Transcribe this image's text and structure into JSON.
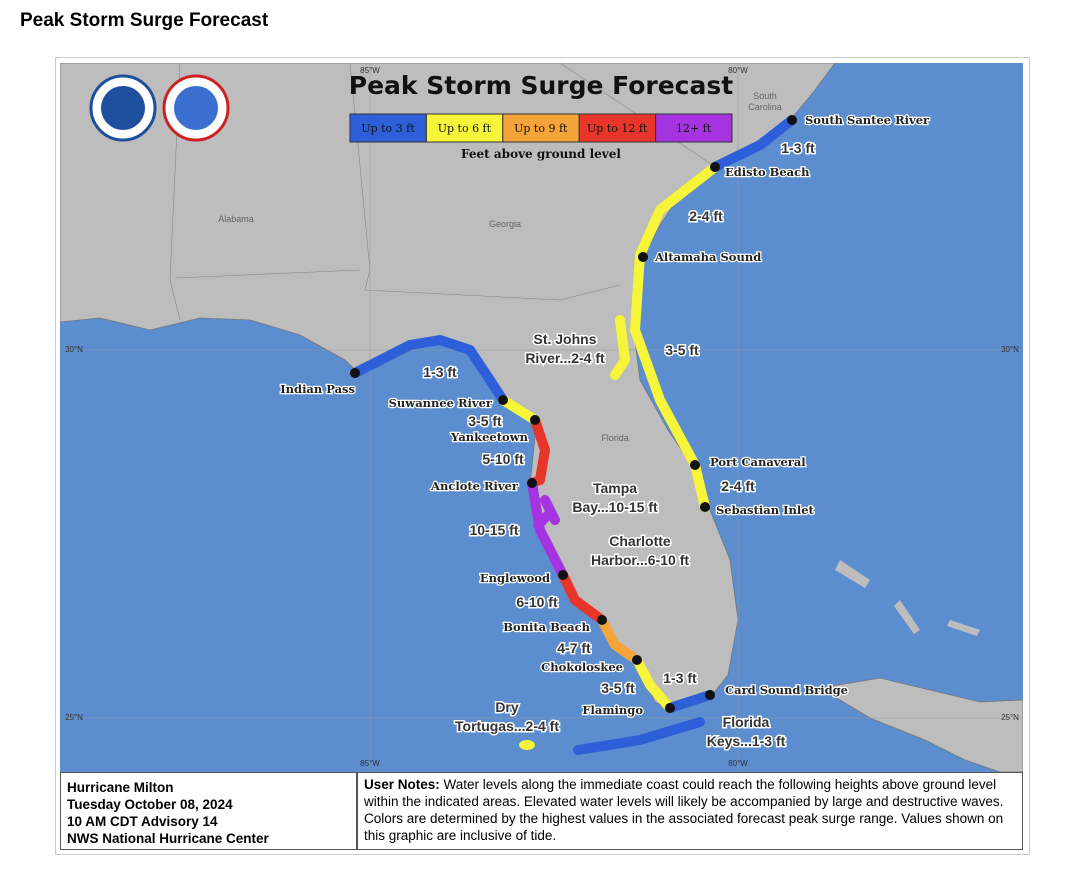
{
  "page_title": "Peak Storm Surge Forecast",
  "map": {
    "title": "Peak Storm Surge Forecast",
    "legend": [
      {
        "label": "Up to 3 ft",
        "color": "#2d5fd8"
      },
      {
        "label": "Up to 6 ft",
        "color": "#f7f53a"
      },
      {
        "label": "Up to 9 ft",
        "color": "#f5a43a"
      },
      {
        "label": "Up to 12 ft",
        "color": "#e8352a"
      },
      {
        "label": "12+ ft",
        "color": "#a533e0"
      }
    ],
    "legend_caption": "Feet above ground level",
    "grid_labels": {
      "top": [
        "85°W",
        "80°W"
      ],
      "bottom": [
        "85°W",
        "80°W"
      ],
      "left": [
        "30°N",
        "25°N"
      ],
      "right": [
        "30°N",
        "25°N"
      ]
    },
    "regions": [
      "Alabama",
      "Georgia",
      "South",
      "Carolina",
      "Florida"
    ],
    "places": [
      "South Santee River",
      "Edisto Beach",
      "Altamaha Sound",
      "Port Canaveral",
      "Sebastian Inlet",
      "Card Sound Bridge",
      "Indian Pass",
      "Suwannee River",
      "Yankeetown",
      "Anclote River",
      "Englewood",
      "Bonita Beach",
      "Chokoloskee",
      "Flamingo"
    ],
    "surge_labels": [
      "1-3 ft",
      "2-4 ft",
      "3-5 ft",
      "2-4 ft",
      "1-3 ft",
      "3-5 ft",
      "5-10 ft",
      "10-15 ft",
      "6-10 ft",
      "4-7 ft",
      "3-5 ft",
      "1-3 ft",
      [
        "St. Johns",
        "River...2-4 ft"
      ],
      [
        "Tampa",
        "Bay...10-15 ft"
      ],
      [
        "Charlotte",
        "Harbor...6-10 ft"
      ],
      [
        "Dry",
        "Tortugas...2-4 ft"
      ],
      [
        "Florida",
        "Keys...1-3 ft"
      ]
    ]
  },
  "info": [
    "Hurricane Milton",
    "Tuesday October 08, 2024",
    "10 AM CDT Advisory 14",
    "NWS National Hurricane Center"
  ],
  "notes": {
    "label": "User Notes:",
    "text": "Water levels along the immediate coast could reach the following heights above ground level within the indicated areas. Elevated water levels will likely be accompanied by large and destructive waves. Colors are determined by the highest values in the associated forecast peak surge range. Values shown on this graphic are inclusive of tide."
  }
}
